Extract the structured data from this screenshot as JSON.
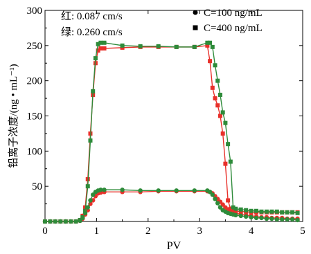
{
  "chart_data": {
    "type": "line",
    "xlabel": "PV",
    "ylabel": "铅离子浓度/(ng • mL⁻¹)",
    "xlim": [
      0,
      5
    ],
    "ylim": [
      0,
      300
    ],
    "xticks": [
      "0",
      "1",
      "2",
      "3",
      "4",
      "5"
    ],
    "yticks": [
      "50",
      "100",
      "150",
      "200",
      "250",
      "300"
    ],
    "grid": false,
    "legend": "top-right",
    "notes": [
      "红: 0.087 cm/s",
      "绿: 0.260 cm/s"
    ],
    "legend_items": [
      {
        "marker": "circle",
        "label": "C=100 ng/mL"
      },
      {
        "marker": "square",
        "label": "C=400 ng/mL"
      }
    ],
    "series": [
      {
        "color": "#e8302a",
        "marker": "square",
        "x": [
          0.0,
          0.1,
          0.2,
          0.3,
          0.4,
          0.5,
          0.6,
          0.68,
          0.73,
          0.78,
          0.83,
          0.88,
          0.93,
          0.98,
          1.03,
          1.08,
          1.15,
          1.5,
          1.85,
          2.2,
          2.55,
          2.9,
          3.15,
          3.2,
          3.25,
          3.3,
          3.35,
          3.4,
          3.45,
          3.5,
          3.55,
          3.6,
          3.65,
          3.7,
          3.8,
          3.9,
          4.0,
          4.1,
          4.2,
          4.3,
          4.4,
          4.5,
          4.6,
          4.7,
          4.8,
          4.9
        ],
        "y": [
          0,
          0,
          0,
          0,
          0,
          0,
          0,
          2,
          8,
          20,
          60,
          125,
          180,
          225,
          243,
          246,
          246,
          247,
          248,
          248,
          248,
          248,
          250,
          228,
          190,
          175,
          165,
          150,
          125,
          82,
          30,
          18,
          16,
          15,
          14,
          14,
          13,
          13,
          13,
          13,
          13,
          13,
          13,
          13,
          13,
          13
        ]
      },
      {
        "color": "#2e8b3a",
        "marker": "square",
        "x": [
          0.0,
          0.1,
          0.2,
          0.3,
          0.4,
          0.5,
          0.6,
          0.68,
          0.73,
          0.78,
          0.83,
          0.88,
          0.93,
          0.98,
          1.03,
          1.08,
          1.15,
          1.5,
          1.85,
          2.2,
          2.55,
          2.9,
          3.15,
          3.2,
          3.25,
          3.3,
          3.35,
          3.4,
          3.45,
          3.5,
          3.55,
          3.6,
          3.65,
          3.7,
          3.8,
          3.9,
          4.0,
          4.1,
          4.2,
          4.3,
          4.4,
          4.5,
          4.6,
          4.7,
          4.8,
          4.9
        ],
        "y": [
          0,
          0,
          0,
          0,
          0,
          0,
          0,
          2,
          6,
          15,
          50,
          115,
          185,
          232,
          252,
          254,
          254,
          250,
          249,
          249,
          248,
          248,
          254,
          254,
          248,
          222,
          200,
          180,
          155,
          140,
          110,
          85,
          20,
          18,
          17,
          16,
          15,
          15,
          14,
          14,
          14,
          14,
          13,
          13,
          13,
          12
        ]
      },
      {
        "color": "#e8302a",
        "marker": "circle",
        "x": [
          0.0,
          0.1,
          0.2,
          0.3,
          0.4,
          0.5,
          0.6,
          0.68,
          0.73,
          0.78,
          0.83,
          0.88,
          0.93,
          0.98,
          1.03,
          1.08,
          1.15,
          1.5,
          1.85,
          2.2,
          2.55,
          2.9,
          3.15,
          3.2,
          3.25,
          3.3,
          3.35,
          3.4,
          3.45,
          3.5,
          3.55,
          3.6,
          3.65,
          3.7,
          3.8,
          3.9,
          4.0,
          4.1,
          4.2,
          4.3,
          4.4,
          4.5,
          4.6,
          4.7,
          4.8,
          4.9
        ],
        "y": [
          0,
          0,
          0,
          0,
          0,
          0,
          0,
          1,
          4,
          10,
          16,
          25,
          30,
          36,
          40,
          41,
          42,
          42,
          42,
          43,
          43,
          43,
          43,
          42,
          40,
          36,
          32,
          28,
          24,
          20,
          17,
          15,
          13,
          12,
          10,
          9,
          8,
          7,
          6,
          6,
          5,
          5,
          5,
          4,
          4,
          4
        ]
      },
      {
        "color": "#2e8b3a",
        "marker": "circle",
        "x": [
          0.0,
          0.1,
          0.2,
          0.3,
          0.4,
          0.5,
          0.6,
          0.68,
          0.73,
          0.78,
          0.83,
          0.88,
          0.93,
          0.98,
          1.03,
          1.08,
          1.15,
          1.5,
          1.85,
          2.2,
          2.55,
          2.9,
          3.15,
          3.2,
          3.25,
          3.3,
          3.35,
          3.4,
          3.45,
          3.5,
          3.55,
          3.6,
          3.65,
          3.7,
          3.8,
          3.9,
          4.0,
          4.1,
          4.2,
          4.3,
          4.4,
          4.5,
          4.6,
          4.7,
          4.8,
          4.9
        ],
        "y": [
          0,
          0,
          0,
          0,
          0,
          0,
          0,
          1,
          5,
          12,
          20,
          30,
          38,
          42,
          44,
          45,
          45,
          45,
          44,
          44,
          44,
          44,
          44,
          42,
          38,
          32,
          26,
          20,
          16,
          14,
          12,
          11,
          10,
          9,
          8,
          7,
          6,
          5,
          5,
          4,
          4,
          3,
          3,
          3,
          3,
          2
        ]
      }
    ]
  }
}
